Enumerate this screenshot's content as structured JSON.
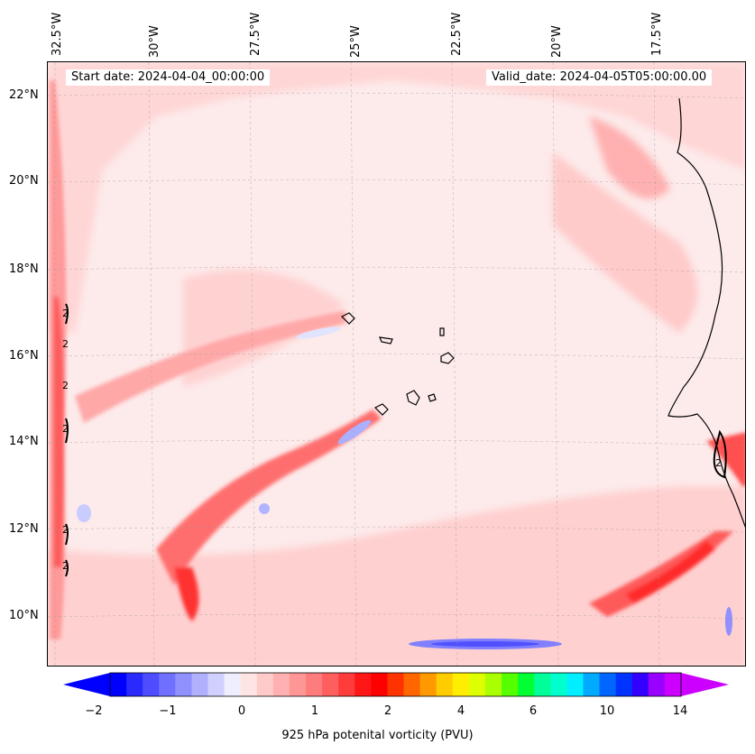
{
  "header": {
    "start_date": "Start date: 2024-04-04_00:00:00",
    "valid_date": "Valid_date: 2024-04-05T05:00:00.00"
  },
  "axes": {
    "lon_labels": [
      "32.5°W",
      "30°W",
      "27.5°W",
      "25°W",
      "22.5°W",
      "20°W",
      "17.5°W"
    ],
    "lat_labels": [
      "22°N",
      "20°N",
      "18°N",
      "16°N",
      "14°N",
      "12°N",
      "10°N"
    ]
  },
  "colorbar": {
    "label": "925 hPa potenital vorticity (PVU)",
    "tick_labels": [
      "−2",
      "−1",
      "0",
      "1",
      "2",
      "4",
      "6",
      "10",
      "14"
    ],
    "colors": [
      "#0000ff",
      "#2a2aff",
      "#4d4dff",
      "#7070ff",
      "#9090ff",
      "#b0b0ff",
      "#d0d0ff",
      "#eeeeff",
      "#ffe4e4",
      "#ffcaca",
      "#ffb0b0",
      "#ff9696",
      "#ff7c7c",
      "#ff5e5e",
      "#ff3c3c",
      "#ff1616",
      "#ff0000",
      "#ff3300",
      "#ff6600",
      "#ff9900",
      "#ffcc00",
      "#ffee00",
      "#ddff00",
      "#aaff00",
      "#55ff00",
      "#00ff33",
      "#00ff99",
      "#00ffcc",
      "#00eeff",
      "#00aaff",
      "#0066ff",
      "#0033ff",
      "#3300ff",
      "#9900ff",
      "#cc00ff"
    ],
    "extend_low_color": "#0000ff",
    "extend_high_color": "#cc00ff"
  },
  "map": {
    "background_color": "#fde3e3",
    "contour_label": "2"
  }
}
